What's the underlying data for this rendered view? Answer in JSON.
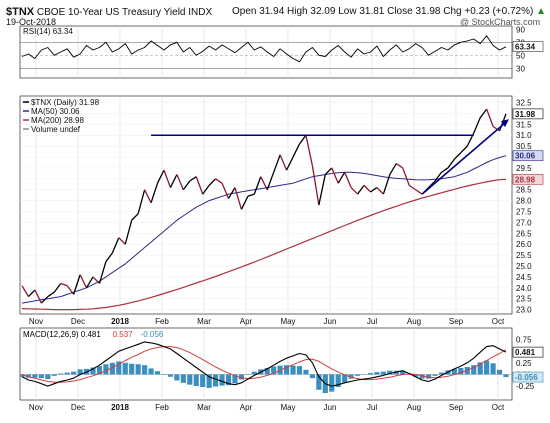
{
  "header": {
    "symbol": "$TNX",
    "description": "CBOE 10-Year US Treasury Yield",
    "exchange": "INDX",
    "date": "19-Oct-2018",
    "quote": "Open 31.94  High 32.09  Low 31.81  Close 31.98  Chg +0.23 (+0.72%)",
    "chg_arrow": "▲",
    "watermark": "@ StockCharts.com"
  },
  "colors": {
    "price": "#000000",
    "ma50": "#2a2a8a",
    "ma200": "#b03040",
    "trend": "#000080",
    "macd_line": "#000000",
    "signal_line": "#d04040",
    "histogram": "#3a8ec0",
    "grid": "#d8d8d8"
  },
  "chart_data": [
    {
      "type": "line",
      "panel": "rsi",
      "legend": "RSI(14) 63.34",
      "last_value": "63.34",
      "ylim": [
        15,
        95
      ],
      "ticks": [
        "90",
        "70",
        "50",
        "30",
        "10"
      ],
      "bands": [
        70,
        30
      ],
      "values": [
        48,
        52,
        45,
        58,
        62,
        50,
        55,
        60,
        47,
        52,
        65,
        58,
        62,
        70,
        55,
        60,
        68,
        52,
        58,
        62,
        72,
        65,
        58,
        66,
        70,
        55,
        62,
        50,
        56,
        64,
        58,
        66,
        60,
        54,
        62,
        70,
        58,
        63,
        55,
        48,
        60,
        52,
        45,
        40,
        55,
        62,
        50,
        48,
        58,
        65,
        55,
        47,
        60,
        52,
        55,
        64,
        48,
        58,
        66,
        55,
        60,
        68,
        62,
        50,
        56,
        62,
        58,
        66,
        70,
        72,
        75,
        68,
        80,
        65,
        58,
        63
      ]
    },
    {
      "type": "line",
      "panel": "price",
      "legend": [
        {
          "label": "$TNX (Daily) 31.98",
          "series": "price"
        },
        {
          "label": "MA(50) 30.06",
          "series": "ma50"
        },
        {
          "label": "MA(200) 28.98",
          "series": "ma200"
        },
        {
          "label": "Volume undef",
          "series": "volume"
        }
      ],
      "x_ticks": [
        "Nov",
        "Dec",
        "2018",
        "Feb",
        "Mar",
        "Apr",
        "May",
        "Jun",
        "Jul",
        "Aug",
        "Sep",
        "Oct"
      ],
      "ylim": [
        22.8,
        32.8
      ],
      "y_ticks": [
        "32.5",
        "32.0",
        "31.5",
        "31.0",
        "30.5",
        "30.0",
        "29.5",
        "29.0",
        "28.5",
        "28.0",
        "27.5",
        "27.0",
        "26.5",
        "26.0",
        "25.5",
        "25.0",
        "24.5",
        "24.0",
        "23.5",
        "23.0"
      ],
      "last_labels": {
        "close": "31.98",
        "ma50": "30.06",
        "ma200": "28.98"
      },
      "horizontal_line": {
        "y": 31.0,
        "from": 20,
        "to": 70
      },
      "trendline": {
        "from": [
          62,
          28.3
        ],
        "to": [
          75,
          31.6
        ]
      },
      "series": [
        {
          "name": "$TNX (Daily)",
          "values": [
            24.1,
            23.6,
            23.9,
            23.3,
            23.6,
            23.8,
            24.2,
            24.1,
            23.7,
            24.6,
            24.0,
            24.5,
            24.2,
            25.2,
            25.6,
            26.3,
            26.0,
            27.1,
            27.4,
            28.5,
            27.9,
            28.8,
            29.4,
            28.6,
            29.2,
            28.5,
            28.9,
            29.1,
            28.3,
            28.7,
            29.0,
            28.8,
            28.1,
            28.6,
            27.6,
            28.2,
            28.3,
            29.1,
            28.5,
            29.3,
            30.1,
            29.4,
            30.0,
            30.6,
            31.0,
            29.6,
            27.8,
            29.2,
            29.5,
            28.8,
            29.3,
            28.6,
            28.3,
            28.7,
            28.4,
            28.6,
            28.3,
            29.2,
            29.7,
            29.5,
            28.7,
            28.5,
            28.3,
            28.6,
            28.9,
            29.3,
            29.5,
            29.9,
            30.2,
            30.5,
            31.1,
            31.8,
            32.2,
            31.4,
            31.2,
            31.98
          ]
        },
        {
          "name": "MA(50)",
          "values": [
            23.3,
            23.35,
            23.4,
            23.45,
            23.5,
            23.55,
            23.6,
            23.7,
            23.8,
            23.9,
            24.0,
            24.15,
            24.3,
            24.5,
            24.7,
            24.9,
            25.1,
            25.35,
            25.6,
            25.85,
            26.1,
            26.35,
            26.6,
            26.85,
            27.1,
            27.3,
            27.5,
            27.7,
            27.85,
            28.0,
            28.1,
            28.2,
            28.3,
            28.35,
            28.4,
            28.45,
            28.5,
            28.55,
            28.6,
            28.65,
            28.7,
            28.75,
            28.8,
            28.9,
            29.0,
            29.1,
            29.15,
            29.2,
            29.25,
            29.28,
            29.3,
            29.3,
            29.28,
            29.25,
            29.2,
            29.15,
            29.1,
            29.05,
            29.02,
            29.0,
            28.98,
            28.96,
            28.95,
            28.96,
            28.98,
            29.0,
            29.05,
            29.1,
            29.2,
            29.3,
            29.45,
            29.6,
            29.75,
            29.88,
            29.98,
            30.06
          ]
        },
        {
          "name": "MA(200)",
          "values": [
            23.05,
            23.04,
            23.03,
            23.02,
            23.01,
            23.0,
            23.0,
            23.0,
            23.0,
            23.01,
            23.02,
            23.04,
            23.07,
            23.1,
            23.15,
            23.2,
            23.26,
            23.33,
            23.4,
            23.48,
            23.56,
            23.65,
            23.74,
            23.83,
            23.92,
            24.02,
            24.12,
            24.22,
            24.32,
            24.42,
            24.52,
            24.63,
            24.74,
            24.85,
            24.96,
            25.07,
            25.18,
            25.3,
            25.42,
            25.54,
            25.66,
            25.78,
            25.9,
            26.02,
            26.14,
            26.26,
            26.38,
            26.5,
            26.62,
            26.74,
            26.86,
            26.98,
            27.1,
            27.21,
            27.32,
            27.43,
            27.54,
            27.64,
            27.74,
            27.84,
            27.94,
            28.03,
            28.12,
            28.2,
            28.28,
            28.36,
            28.44,
            28.52,
            28.6,
            28.67,
            28.74,
            28.8,
            28.86,
            28.92,
            28.96,
            28.98
          ]
        }
      ]
    },
    {
      "type": "line",
      "panel": "macd",
      "legend": [
        {
          "label": "MACD(12,26,9) 0.481",
          "series": "macd"
        },
        {
          "label": "0.537",
          "series": "signal"
        },
        {
          "label": "-0.056",
          "series": "histogram"
        }
      ],
      "ylim": [
        -0.55,
        1.0
      ],
      "y_ticks": [
        "0.75",
        "0.50",
        "0.25",
        "0.00",
        "-0.25"
      ],
      "last_labels": {
        "macd": "0.481",
        "signal": "0.537",
        "hist": "-0.056"
      },
      "x_ticks": [
        "Nov",
        "Dec",
        "2018",
        "Feb",
        "Mar",
        "Apr",
        "May",
        "Jun",
        "Jul",
        "Aug",
        "Sep",
        "Oct"
      ],
      "series": [
        {
          "name": "MACD(12,26,9)",
          "values": [
            -0.05,
            -0.12,
            -0.15,
            -0.2,
            -0.25,
            -0.2,
            -0.15,
            -0.12,
            -0.08,
            0.0,
            0.05,
            0.12,
            0.2,
            0.3,
            0.4,
            0.5,
            0.55,
            0.6,
            0.65,
            0.7,
            0.68,
            0.65,
            0.6,
            0.55,
            0.45,
            0.35,
            0.25,
            0.15,
            0.05,
            -0.05,
            -0.1,
            -0.15,
            -0.2,
            -0.22,
            -0.18,
            -0.1,
            -0.02,
            0.05,
            0.12,
            0.2,
            0.28,
            0.35,
            0.4,
            0.45,
            0.42,
            0.25,
            -0.05,
            -0.2,
            -0.25,
            -0.22,
            -0.18,
            -0.15,
            -0.12,
            -0.1,
            -0.08,
            -0.05,
            -0.02,
            0.02,
            0.05,
            0.08,
            0.02,
            -0.05,
            -0.12,
            -0.15,
            -0.1,
            -0.02,
            0.05,
            0.12,
            0.18,
            0.25,
            0.35,
            0.48,
            0.6,
            0.62,
            0.55,
            0.481
          ]
        },
        {
          "name": "signal",
          "values": [
            0.0,
            -0.05,
            -0.08,
            -0.12,
            -0.15,
            -0.17,
            -0.17,
            -0.16,
            -0.14,
            -0.11,
            -0.07,
            -0.03,
            0.02,
            0.08,
            0.15,
            0.22,
            0.3,
            0.37,
            0.43,
            0.5,
            0.55,
            0.58,
            0.6,
            0.6,
            0.58,
            0.53,
            0.47,
            0.4,
            0.32,
            0.24,
            0.16,
            0.09,
            0.03,
            -0.03,
            -0.07,
            -0.09,
            -0.08,
            -0.06,
            -0.02,
            0.03,
            0.09,
            0.15,
            0.21,
            0.27,
            0.32,
            0.33,
            0.28,
            0.2,
            0.12,
            0.05,
            -0.01,
            -0.06,
            -0.09,
            -0.11,
            -0.11,
            -0.1,
            -0.08,
            -0.06,
            -0.03,
            0.0,
            0.01,
            0.0,
            -0.03,
            -0.06,
            -0.07,
            -0.06,
            -0.04,
            0.0,
            0.04,
            0.09,
            0.15,
            0.22,
            0.3,
            0.38,
            0.45,
            0.537
          ]
        }
      ]
    }
  ]
}
